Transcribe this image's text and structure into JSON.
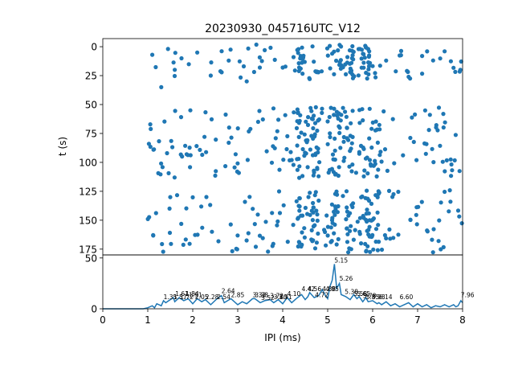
{
  "chart_data": [
    {
      "type": "scatter",
      "title": "20230930_045716UTC_V12",
      "xlabel": "",
      "ylabel": "t (s)",
      "xlim": [
        0,
        8
      ],
      "ylim": [
        180,
        -7
      ],
      "y_inverted": true,
      "yticks": [
        "0",
        "25",
        "50",
        "75",
        "100",
        "125",
        "150",
        "175"
      ],
      "series": [
        {
          "color": "#1f77b4",
          "bands": [
            {
              "t_range": [
                -2,
                28
              ],
              "x_range": [
                1.0,
                8.0
              ]
            },
            {
              "t_range": [
                52,
                114
              ],
              "x_range": [
                1.0,
                8.0
              ]
            },
            {
              "t_range": [
                124,
                178
              ],
              "x_range": [
                1.0,
                8.0
              ]
            }
          ],
          "dense_x_regions": [
            [
              4.3,
              4.8
            ],
            [
              5.0,
              5.6
            ],
            [
              5.7,
              6.2
            ]
          ],
          "sample_points": [
            [
              1.1,
              7
            ],
            [
              1.3,
              35
            ],
            [
              1.45,
              2
            ],
            [
              1.6,
              20
            ],
            [
              1.75,
              10
            ],
            [
              2.1,
              5
            ],
            [
              2.4,
              25
            ],
            [
              2.8,
              12
            ],
            [
              3.2,
              30
            ],
            [
              3.6,
              3
            ],
            [
              4.0,
              18
            ],
            [
              4.4,
              8
            ],
            [
              4.6,
              28
            ],
            [
              5.1,
              6
            ],
            [
              5.3,
              16
            ],
            [
              5.5,
              22
            ],
            [
              5.9,
              2
            ],
            [
              6.3,
              12
            ],
            [
              6.8,
              26
            ],
            [
              7.1,
              8
            ],
            [
              7.6,
              4
            ],
            [
              7.95,
              20
            ]
          ]
        }
      ]
    },
    {
      "type": "line",
      "title": "",
      "xlabel": "IPI (ms)",
      "ylabel": "",
      "xlim": [
        0,
        8
      ],
      "ylim": [
        0,
        53
      ],
      "xticks": [
        "0",
        "1",
        "2",
        "3",
        "4",
        "5",
        "6",
        "7",
        "8"
      ],
      "yticks": [
        "0",
        "50"
      ],
      "series": [
        {
          "color": "#1f77b4",
          "x": [
            0.0,
            0.5,
            0.9,
            1.0,
            1.1,
            1.15,
            1.2,
            1.3,
            1.35,
            1.4,
            1.5,
            1.57,
            1.6,
            1.7,
            1.8,
            1.9,
            2.0,
            2.1,
            2.2,
            2.28,
            2.4,
            2.54,
            2.64,
            2.7,
            2.85,
            3.0,
            3.1,
            3.2,
            3.33,
            3.38,
            3.5,
            3.6,
            3.72,
            3.8,
            3.9,
            4.0,
            4.1,
            4.2,
            4.3,
            4.42,
            4.5,
            4.56,
            4.6,
            4.7,
            4.8,
            4.88,
            4.95,
            5.0,
            5.05,
            5.1,
            5.15,
            5.2,
            5.26,
            5.3,
            5.4,
            5.5,
            5.58,
            5.65,
            5.7,
            5.78,
            5.85,
            5.9,
            6.0,
            6.1,
            6.14,
            6.2,
            6.3,
            6.4,
            6.5,
            6.6,
            6.7,
            6.8,
            6.9,
            7.0,
            7.1,
            7.2,
            7.3,
            7.4,
            7.5,
            7.6,
            7.7,
            7.8,
            7.85,
            7.9,
            7.96,
            8.0
          ],
          "y": [
            0,
            0,
            0,
            1,
            3,
            1,
            5,
            3,
            8,
            6,
            9,
            11,
            7,
            11,
            8,
            10,
            5,
            10,
            7,
            9,
            4,
            10,
            13,
            6,
            10,
            4,
            7,
            5,
            10,
            10,
            6,
            8,
            9,
            6,
            9,
            5,
            11,
            6,
            10,
            14,
            9,
            12,
            16,
            11,
            13,
            19,
            13,
            10,
            22,
            28,
            44,
            20,
            25,
            14,
            12,
            9,
            14,
            10,
            12,
            7,
            11,
            7,
            8,
            5,
            6,
            4,
            7,
            3,
            5,
            2,
            4,
            6,
            2,
            5,
            2,
            4,
            1,
            3,
            2,
            4,
            2,
            4,
            2,
            3,
            8,
            6
          ]
        }
      ],
      "peak_labels": [
        {
          "x": 1.35,
          "y": 8,
          "text": "1.35"
        },
        {
          "x": 1.57,
          "y": 8,
          "text": "1.57"
        },
        {
          "x": 1.61,
          "y": 11,
          "text": "1.61"
        },
        {
          "x": 1.72,
          "y": 8,
          "text": "1.72"
        },
        {
          "x": 1.84,
          "y": 11,
          "text": "1.84"
        },
        {
          "x": 1.91,
          "y": 10,
          "text": "1.91"
        },
        {
          "x": 2.05,
          "y": 8,
          "text": "2.05"
        },
        {
          "x": 2.28,
          "y": 8,
          "text": "2.28"
        },
        {
          "x": 2.54,
          "y": 8,
          "text": "2.54"
        },
        {
          "x": 2.64,
          "y": 14,
          "text": "2.64"
        },
        {
          "x": 2.85,
          "y": 10,
          "text": "2.85"
        },
        {
          "x": 3.33,
          "y": 10,
          "text": "3.33"
        },
        {
          "x": 3.38,
          "y": 10,
          "text": "3.38"
        },
        {
          "x": 3.52,
          "y": 7,
          "text": "3.52"
        },
        {
          "x": 3.72,
          "y": 9,
          "text": "3.72"
        },
        {
          "x": 3.8,
          "y": 8,
          "text": "3.80"
        },
        {
          "x": 3.91,
          "y": 8,
          "text": "3.91"
        },
        {
          "x": 4.1,
          "y": 11,
          "text": "4.10"
        },
        {
          "x": 4.42,
          "y": 16,
          "text": "4.42"
        },
        {
          "x": 4.56,
          "y": 16,
          "text": "4.56"
        },
        {
          "x": 4.72,
          "y": 10,
          "text": "4.72"
        },
        {
          "x": 4.88,
          "y": 16,
          "text": "4.88"
        },
        {
          "x": 4.95,
          "y": 16,
          "text": "4.95"
        },
        {
          "x": 5.15,
          "y": 44,
          "text": "5.15"
        },
        {
          "x": 5.26,
          "y": 26,
          "text": "5.26"
        },
        {
          "x": 5.38,
          "y": 13,
          "text": "5.38"
        },
        {
          "x": 5.58,
          "y": 11,
          "text": "5.58"
        },
        {
          "x": 5.65,
          "y": 11,
          "text": "5.65"
        },
        {
          "x": 5.78,
          "y": 9,
          "text": "5.78"
        },
        {
          "x": 5.85,
          "y": 8,
          "text": "5.85"
        },
        {
          "x": 5.98,
          "y": 8,
          "text": "5.98"
        },
        {
          "x": 6.14,
          "y": 8,
          "text": "6.14"
        },
        {
          "x": 6.6,
          "y": 8,
          "text": "6.60"
        },
        {
          "x": 7.96,
          "y": 10,
          "text": "7.96"
        }
      ]
    }
  ]
}
